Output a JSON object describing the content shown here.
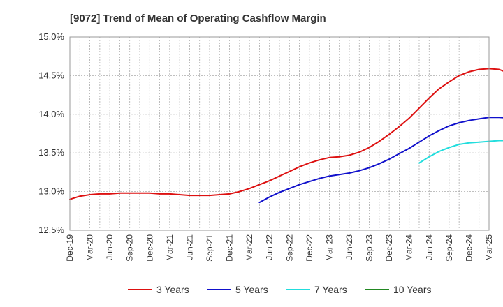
{
  "chart_data": {
    "type": "line",
    "title": "[9072]  Trend of Mean of Operating Cashflow Margin",
    "xlabel": "",
    "ylabel": "",
    "ylim": [
      12.5,
      15.0
    ],
    "y_ticks": [
      "12.5%",
      "13.0%",
      "13.5%",
      "14.0%",
      "14.5%",
      "15.0%"
    ],
    "y_tick_values": [
      12.5,
      13.0,
      13.5,
      14.0,
      14.5,
      15.0
    ],
    "x_ticks": [
      "Dec-19",
      "Mar-20",
      "Jun-20",
      "Sep-20",
      "Dec-20",
      "Mar-21",
      "Jun-21",
      "Sep-21",
      "Dec-21",
      "Mar-22",
      "Jun-22",
      "Sep-22",
      "Dec-22",
      "Mar-23",
      "Jun-23",
      "Sep-23",
      "Dec-23",
      "Mar-24",
      "Jun-24",
      "Sep-24",
      "Dec-24",
      "Mar-25"
    ],
    "grid": true,
    "legend_position": "bottom",
    "series": [
      {
        "name": "3 Years",
        "color": "#dd1111",
        "start_index": 0,
        "values": [
          12.9,
          12.94,
          12.96,
          12.97,
          12.97,
          12.98,
          12.98,
          12.98,
          12.98,
          12.97,
          12.97,
          12.96,
          12.95,
          12.95,
          12.95,
          12.96,
          12.97,
          13.0,
          13.04,
          13.09,
          13.14,
          13.2,
          13.26,
          13.32,
          13.37,
          13.41,
          13.44,
          13.45,
          13.47,
          13.51,
          13.57,
          13.65,
          13.74,
          13.84,
          13.95,
          14.08,
          14.21,
          14.33,
          14.42,
          14.5,
          14.55,
          14.58,
          14.59,
          14.58,
          14.53
        ]
      },
      {
        "name": "5 Years",
        "color": "#1111cc",
        "start_index": 19,
        "values": [
          12.86,
          12.93,
          12.99,
          13.04,
          13.09,
          13.13,
          13.17,
          13.2,
          13.22,
          13.24,
          13.27,
          13.31,
          13.36,
          13.42,
          13.49,
          13.56,
          13.64,
          13.72,
          13.79,
          13.85,
          13.89,
          13.92,
          13.94,
          13.96,
          13.96,
          13.95
        ]
      },
      {
        "name": "7 Years",
        "color": "#22dddd",
        "start_index": 35,
        "values": [
          13.37,
          13.45,
          13.52,
          13.57,
          13.61,
          13.63,
          13.64,
          13.65,
          13.66,
          13.66
        ]
      },
      {
        "name": "10 Years",
        "color": "#228822",
        "start_index": 0,
        "values": []
      }
    ]
  }
}
